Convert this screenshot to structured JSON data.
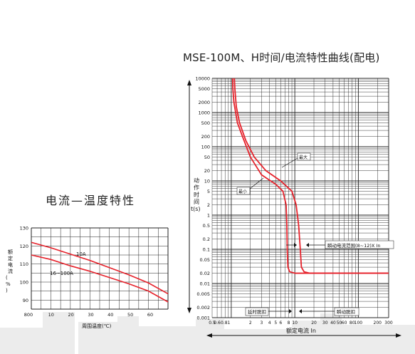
{
  "chart_data": [
    {
      "type": "line",
      "title": "电流—温度特性",
      "xlabel": "周围温度(℃)",
      "ylabel": "额定电流(%)",
      "x_ticks": [
        "800",
        "10",
        "20",
        "30",
        "40",
        "50",
        "60"
      ],
      "y_ticks": [
        "130",
        "120",
        "110",
        "100",
        "90"
      ],
      "xlim": [
        0,
        70
      ],
      "ylim": [
        85,
        130
      ],
      "grid": true,
      "series": [
        {
          "name": "10A",
          "x": [
            0,
            10,
            20,
            30,
            40,
            50,
            60,
            70
          ],
          "y": [
            122,
            119,
            115.5,
            112,
            108,
            104,
            99.5,
            93.5
          ]
        },
        {
          "name": "16~100A",
          "x": [
            0,
            10,
            20,
            30,
            40,
            50,
            60,
            70
          ],
          "y": [
            115,
            112.5,
            109,
            106,
            102.5,
            99,
            95,
            89
          ]
        }
      ]
    },
    {
      "type": "line",
      "title": "MSE-100M、H时间/电流特性曲线(配电)",
      "xlabel": "额定电流 In",
      "ylabel": "动作时间t(s)",
      "xscale": "log",
      "yscale": "log",
      "xlim": [
        0.5,
        300
      ],
      "ylim": [
        0.001,
        10000
      ],
      "grid": true,
      "x_tick_labels": [
        "0.5",
        "0.6",
        "0.81",
        "2",
        "3",
        "4",
        "5",
        "6",
        "8",
        "10",
        "20",
        "30",
        "40",
        "50",
        "60",
        "80",
        "100",
        "200",
        "300"
      ],
      "x_tick_values": [
        0.5,
        0.6,
        0.81,
        2,
        3,
        4,
        5,
        6,
        8,
        10,
        20,
        30,
        40,
        50,
        60,
        80,
        100,
        200,
        300
      ],
      "y_tick_labels": [
        "10000",
        "5000",
        "2000",
        "1000",
        "500",
        "200",
        "100",
        "50",
        "20",
        "10",
        "5",
        "2",
        "1",
        "0.5",
        "0.2",
        "0.1",
        "0.05",
        "0.02",
        "0.01",
        "0.005",
        "0.002",
        "0.001"
      ],
      "y_tick_values": [
        10000,
        5000,
        2000,
        1000,
        500,
        200,
        100,
        50,
        20,
        10,
        5,
        2,
        1,
        0.5,
        0.2,
        0.1,
        0.05,
        0.02,
        0.01,
        0.005,
        0.002,
        0.001
      ],
      "series": [
        {
          "name": "最小",
          "x": [
            1.05,
            1.06,
            1.1,
            1.25,
            1.5,
            2,
            3,
            5,
            6.5,
            7.3,
            7.5,
            7.6,
            7.8,
            8.3,
            10,
            15,
            30,
            100,
            300
          ],
          "y": [
            10000,
            5000,
            2000,
            500,
            200,
            50,
            15,
            8,
            5,
            2,
            0.5,
            0.1,
            0.03,
            0.022,
            0.02,
            0.02,
            0.02,
            0.02,
            0.02
          ]
        },
        {
          "name": "最大",
          "x": [
            1.12,
            1.14,
            1.2,
            1.35,
            1.7,
            2.3,
            3.5,
            6,
            9,
            10.5,
            11.5,
            12.2,
            12.7,
            14,
            17,
            30,
            100,
            300
          ],
          "y": [
            10000,
            5000,
            1500,
            500,
            150,
            50,
            20,
            10,
            5,
            2,
            0.5,
            0.1,
            0.03,
            0.022,
            0.02,
            0.02,
            0.02,
            0.02
          ]
        }
      ],
      "annotations": {
        "max": "最大",
        "min": "最小",
        "instant_range": "瞬动电流范围(8~12)X In",
        "delay_trip": "延时脱扣",
        "instant_trip": "瞬动脱扣"
      }
    }
  ],
  "colors": {
    "curve": "#e6222b",
    "grid": "#222222",
    "backdrop": "#ececec"
  }
}
